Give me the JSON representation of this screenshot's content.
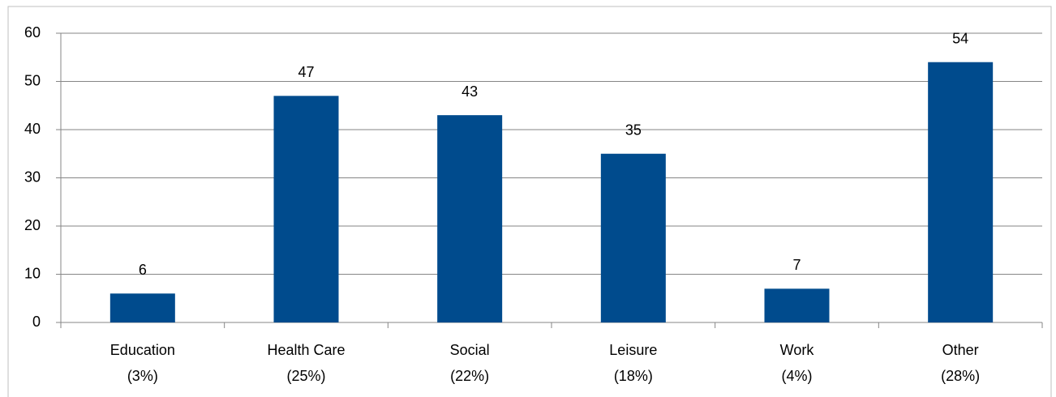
{
  "chart_data": {
    "type": "bar",
    "categories": [
      "Education\n(3%)",
      "Health Care\n(25%)",
      "Social\n(22%)",
      "Leisure\n(18%)",
      "Work\n(4%)",
      "Other\n(28%)"
    ],
    "values": [
      6,
      47,
      43,
      35,
      7,
      54
    ],
    "color": "#004b8d",
    "ylim": [
      0,
      60
    ],
    "yticks": [
      0,
      10,
      20,
      30,
      40,
      50,
      60
    ],
    "grid": true
  }
}
